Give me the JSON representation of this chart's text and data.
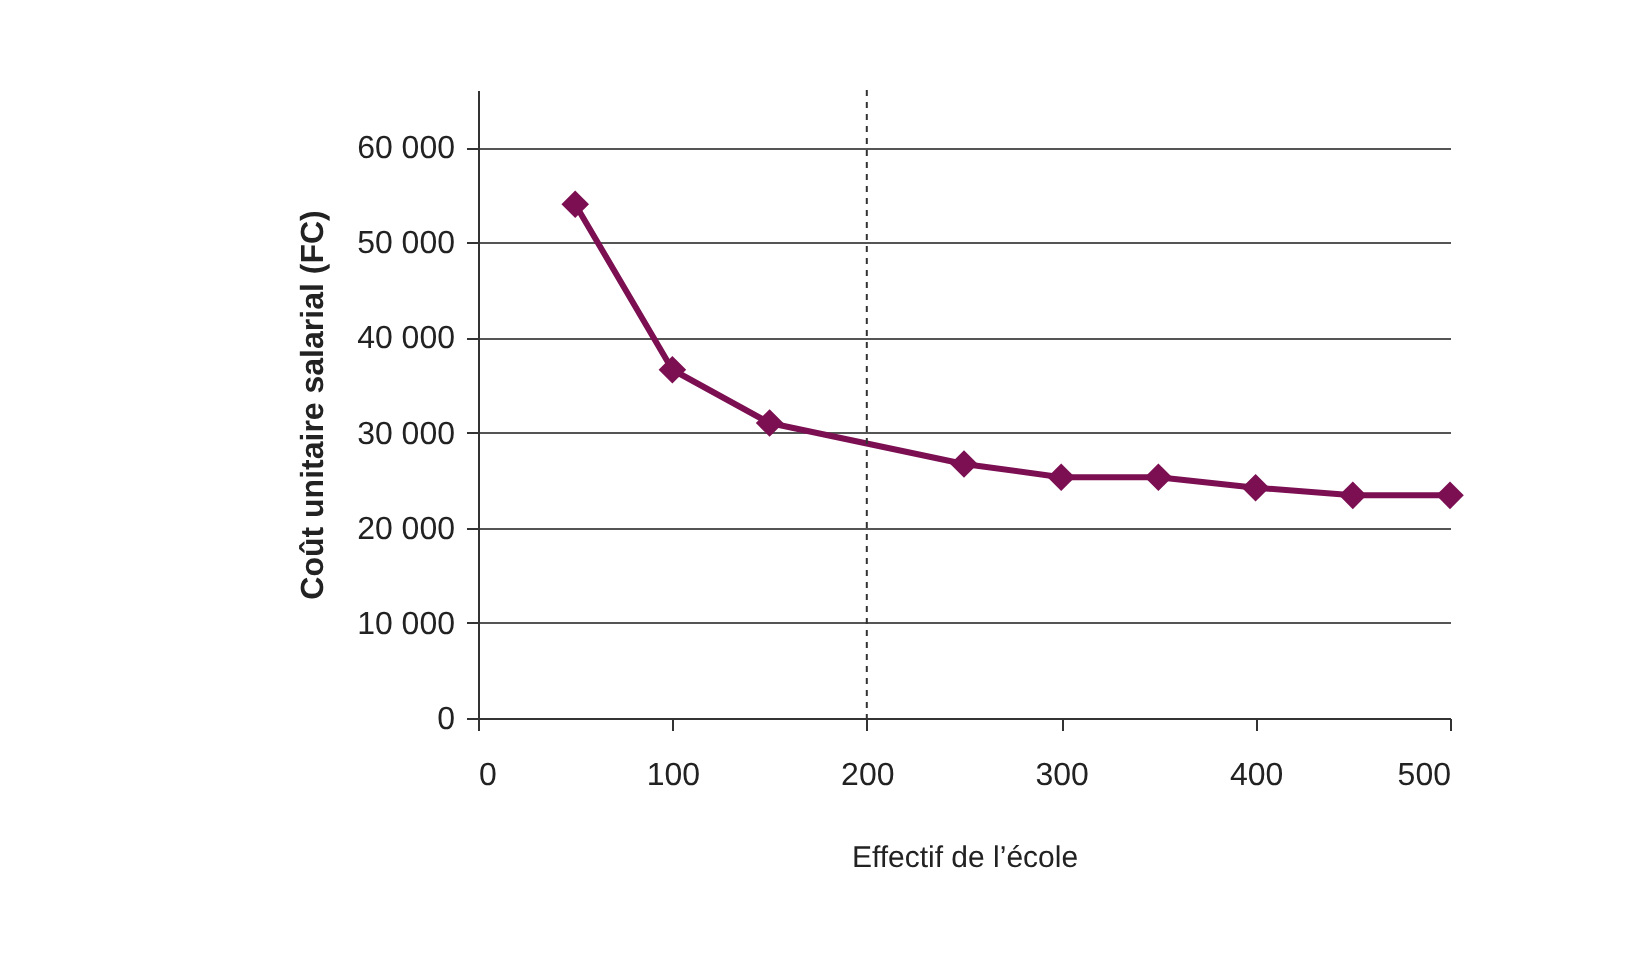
{
  "chart_data": {
    "type": "line",
    "xlabel": "Effectif de l’école",
    "ylabel": "Coût unitaire salarial (FC)",
    "x": [
      50,
      100,
      150,
      250,
      300,
      350,
      400,
      450,
      500
    ],
    "series": [
      {
        "color": "#7b0f52",
        "values": [
          54000,
          36600,
          31000,
          26700,
          25300,
          25300,
          24200,
          23400,
          23400
        ]
      }
    ],
    "xlim": [
      0,
      500
    ],
    "xticks": [
      0,
      100,
      200,
      300,
      400,
      500
    ],
    "ylim": [
      0,
      66000
    ],
    "yticks": [
      {
        "value": 0,
        "label": "0"
      },
      {
        "value": 10000,
        "label": "10 000"
      },
      {
        "value": 20000,
        "label": "20 000"
      },
      {
        "value": 30000,
        "label": "30 000"
      },
      {
        "value": 40000,
        "label": "40 000"
      },
      {
        "value": 50000,
        "label": "50 000"
      },
      {
        "value": 60000,
        "label": "60 000"
      }
    ],
    "grid": "y",
    "marker": "diamond",
    "line_style": "solid",
    "ref_lines": [
      {
        "axis": "x",
        "value": 200,
        "line_style": "dashed",
        "color": "#333333"
      }
    ]
  }
}
